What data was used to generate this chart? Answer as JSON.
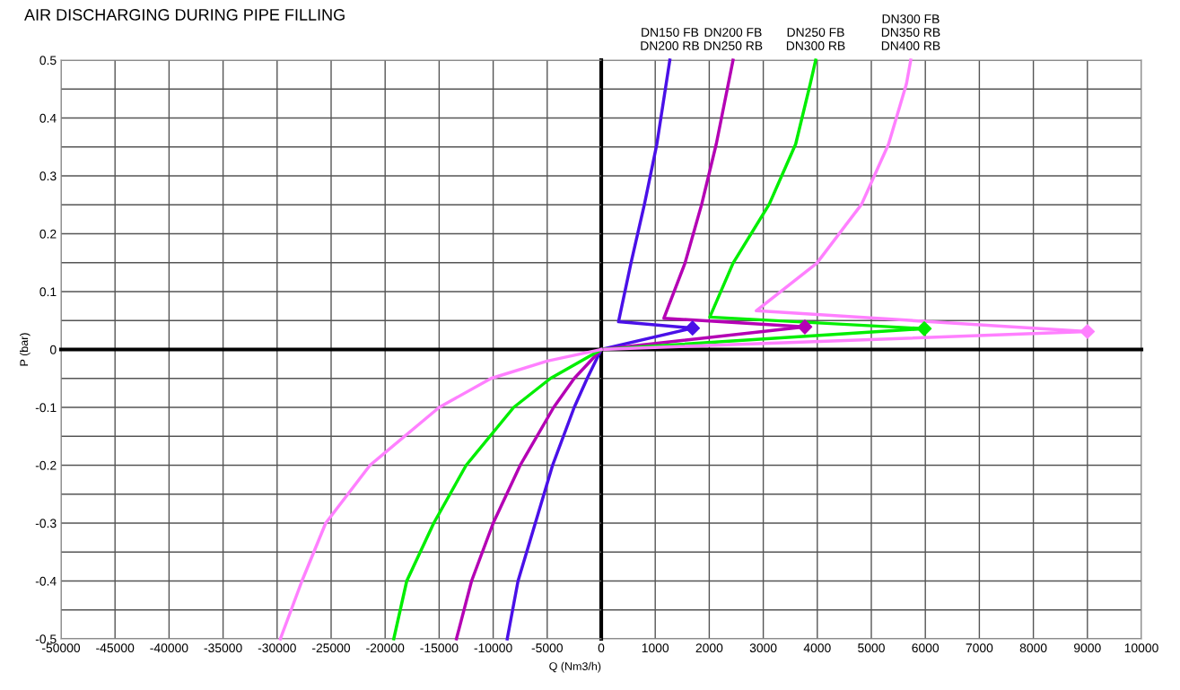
{
  "chart_data": [
    {
      "type": "line",
      "title": "AIR DISCHARGING DURING PIPE FILLING",
      "xlabel": "Q (Nm3/h)",
      "ylabel": "P (bar)",
      "xlim": [
        -50000,
        0
      ],
      "xticks": [
        -50000,
        -45000,
        -40000,
        -35000,
        -30000,
        -25000,
        -20000,
        -15000,
        -10000,
        -5000
      ],
      "ylim": [
        -0.5,
        0.5
      ],
      "yticks": [
        -0.5,
        {
          "value": -0.45,
          "label": null
        },
        -0.4,
        {
          "value": -0.35,
          "label": null
        },
        -0.3,
        {
          "value": -0.25,
          "label": null
        },
        -0.2,
        {
          "value": -0.15,
          "label": null
        },
        -0.1,
        {
          "value": -0.05,
          "label": null
        },
        0,
        {
          "value": 0.05,
          "label": null
        },
        0.1,
        {
          "value": 0.15,
          "label": null
        },
        0.2,
        {
          "value": 0.25,
          "label": null
        },
        0.3,
        {
          "value": 0.35,
          "label": null
        },
        0.4,
        {
          "value": 0.45,
          "label": null
        },
        0.5
      ],
      "grid": true,
      "line_style": "solid",
      "marker": "none",
      "ref_lines": [
        {
          "axis": "y",
          "value": 0,
          "color": "#000000"
        }
      ],
      "series": [
        {
          "color": "#4a10e8",
          "x": [
            -8700,
            -7700,
            -6100,
            -4500,
            -2500,
            -1300,
            0
          ],
          "values": [
            -0.5,
            -0.4,
            -0.3,
            -0.2,
            -0.1,
            -0.05,
            0
          ]
        },
        {
          "color": "#b400b4",
          "x": [
            -13400,
            -12000,
            -10000,
            -7500,
            -4400,
            -2500,
            0
          ],
          "values": [
            -0.5,
            -0.4,
            -0.3,
            -0.2,
            -0.1,
            -0.05,
            0
          ]
        },
        {
          "color": "#00ee00",
          "x": [
            -19200,
            -18000,
            -15500,
            -12500,
            -8100,
            -4700,
            0
          ],
          "values": [
            -0.5,
            -0.4,
            -0.3,
            -0.2,
            -0.1,
            -0.05,
            0
          ]
        },
        {
          "color": "#ff80ff",
          "x": [
            -29700,
            -27700,
            -25500,
            -21400,
            -15000,
            -10200,
            -5000,
            0
          ],
          "values": [
            -0.5,
            -0.4,
            -0.3,
            -0.2,
            -0.1,
            -0.05,
            -0.02,
            0
          ]
        }
      ]
    },
    {
      "type": "line",
      "tick_labels": "x",
      "xlim": [
        0,
        10000
      ],
      "xticks": [
        0,
        1000,
        2000,
        3000,
        4000,
        5000,
        6000,
        7000,
        8000,
        9000,
        10000
      ],
      "ylim": [
        -0.5,
        0.5
      ],
      "yticks": [
        -0.5,
        -0.45,
        -0.4,
        -0.35,
        -0.3,
        -0.25,
        -0.2,
        -0.15,
        -0.1,
        -0.05,
        0,
        0.05,
        0.1,
        0.15,
        0.2,
        0.25,
        0.3,
        0.35,
        0.4,
        0.45,
        0.5
      ],
      "grid": true,
      "line_style": "solid",
      "marker": "none",
      "ref_lines": [
        {
          "axis": "y",
          "value": 0,
          "color": "#000000"
        }
      ],
      "series": [
        {
          "name": "DN150 FB\nDN200 RB",
          "color": "#4a10e8",
          "x": [
            0,
            1690,
            320,
            550,
            800,
            1030,
            1270
          ],
          "values": [
            0,
            0.037,
            0.048,
            0.149,
            0.251,
            0.355,
            0.5
          ]
        },
        {
          "name": "DN200 FB\nDN250 RB",
          "color": "#b400b4",
          "x": [
            0,
            3770,
            1160,
            1550,
            1860,
            2130,
            2440
          ],
          "values": [
            0,
            0.039,
            0.054,
            0.149,
            0.251,
            0.355,
            0.5
          ]
        },
        {
          "name": "DN250 FB\nDN300 RB",
          "color": "#00ee00",
          "x": [
            0,
            5980,
            2010,
            2440,
            3110,
            3600,
            3870,
            3970
          ],
          "values": [
            0,
            0.036,
            0.056,
            0.149,
            0.251,
            0.355,
            0.459,
            0.5
          ]
        },
        {
          "name": "DN300 FB\nDN350 RB\nDN400 RB",
          "color": "#ff80ff",
          "x": [
            0,
            9000,
            2870,
            3990,
            4820,
            5320,
            5650,
            5730
          ],
          "values": [
            0,
            0.031,
            0.067,
            0.149,
            0.251,
            0.355,
            0.459,
            0.5
          ]
        },
        {
          "type": "scatter",
          "marker": "diamond",
          "color": "#4a10e8",
          "x": [
            1690
          ],
          "values": [
            0.037
          ]
        },
        {
          "type": "scatter",
          "marker": "diamond",
          "color": "#b400b4",
          "x": [
            3770
          ],
          "values": [
            0.039
          ]
        },
        {
          "type": "scatter",
          "marker": "diamond",
          "color": "#00ee00",
          "x": [
            5980
          ],
          "values": [
            0.036
          ]
        },
        {
          "type": "scatter",
          "marker": "diamond",
          "color": "#ff80ff",
          "x": [
            9000
          ],
          "values": [
            0.031
          ]
        }
      ]
    }
  ]
}
